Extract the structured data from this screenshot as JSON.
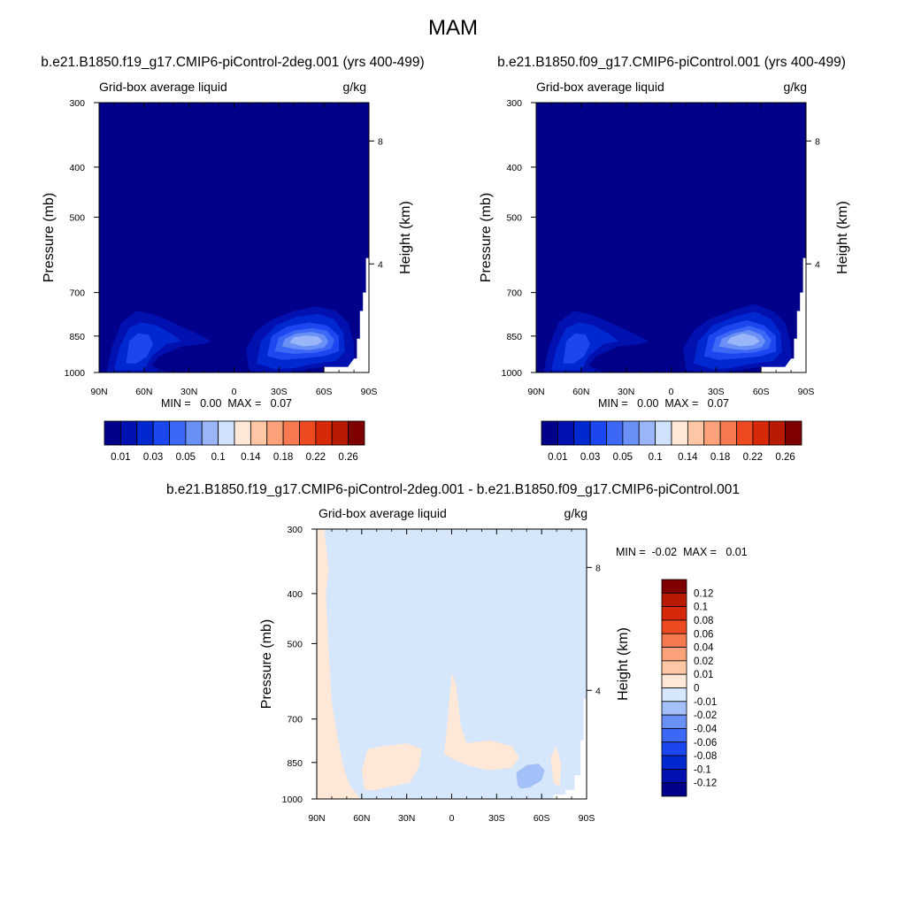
{
  "figure": {
    "title": "MAM"
  },
  "chart_data": [
    {
      "type": "heatmap",
      "title": "b.e21.B1850.f19_g17.CMIP6-piControl-2deg.001 (yrs 400-499)",
      "variable": "Grid-box average liquid",
      "units": "g/kg",
      "ylabel": "Pressure (mb)",
      "ylabel_right": "Height (km)",
      "x_ticks": [
        "90N",
        "60N",
        "30N",
        "0",
        "30S",
        "60S",
        "90S"
      ],
      "y_ticks": [
        "300",
        "400",
        "500",
        "700",
        "850",
        "1000"
      ],
      "y_ticks_right": [
        "8",
        "4"
      ],
      "y_scale": "log",
      "ylim": [
        1000,
        300
      ],
      "stats": "MIN =   0.00  MAX =   0.07",
      "colorbar_levels": [
        0.01,
        0.02,
        0.03,
        0.04,
        0.05,
        0.07,
        0.1,
        0.12,
        0.14,
        0.16,
        0.18,
        0.2,
        0.22,
        0.24,
        0.26
      ],
      "colorbar_labels": [
        "0.01",
        "0.03",
        "0.05",
        "0.1",
        "0.14",
        "0.18",
        "0.22",
        "0.26"
      ],
      "colors": [
        "#00008a",
        "#0011b0",
        "#0028d0",
        "#1c46f0",
        "#3c68f5",
        "#6a8ff5",
        "#9ab6f8",
        "#cfe1fb",
        "#ffe8d8",
        "#fdc7a6",
        "#fba27a",
        "#f57a50",
        "#ee4a22",
        "#d8280a",
        "#b81a04",
        "#7e0000"
      ],
      "contours": [
        {
          "level": "0.01",
          "region": "north-hemisphere low cloud, 60N-15N, 1000-760 mb"
        },
        {
          "level": "0.03",
          "region": "north core near 65N-55N, 900-830 mb"
        },
        {
          "level": "0.01",
          "region": "southern low cloud, 10S-80S, 1000-740 mb"
        },
        {
          "level": "0.05",
          "region": "southern core 25S-65S, 900-790 mb"
        },
        {
          "level": "0.07",
          "region": "peak near 45S-60S, 870-810 mb"
        }
      ]
    },
    {
      "type": "heatmap",
      "title": "b.e21.B1850.f09_g17.CMIP6-piControl.001 (yrs 400-499)",
      "variable": "Grid-box average liquid",
      "units": "g/kg",
      "ylabel": "Pressure (mb)",
      "ylabel_right": "Height (km)",
      "x_ticks": [
        "90N",
        "60N",
        "30N",
        "0",
        "30S",
        "60S",
        "90S"
      ],
      "y_ticks": [
        "300",
        "400",
        "500",
        "700",
        "850",
        "1000"
      ],
      "y_ticks_right": [
        "8",
        "4"
      ],
      "y_scale": "log",
      "ylim": [
        1000,
        300
      ],
      "stats": "MIN =   0.00  MAX =   0.07",
      "colorbar_levels": [
        0.01,
        0.02,
        0.03,
        0.04,
        0.05,
        0.07,
        0.1,
        0.12,
        0.14,
        0.16,
        0.18,
        0.2,
        0.22,
        0.24,
        0.26
      ],
      "colorbar_labels": [
        "0.01",
        "0.03",
        "0.05",
        "0.1",
        "0.14",
        "0.18",
        "0.22",
        "0.26"
      ],
      "colors": [
        "#00008a",
        "#0011b0",
        "#0028d0",
        "#1c46f0",
        "#3c68f5",
        "#6a8ff5",
        "#9ab6f8",
        "#cfe1fb",
        "#ffe8d8",
        "#fdc7a6",
        "#fba27a",
        "#f57a50",
        "#ee4a22",
        "#d8280a",
        "#b81a04",
        "#7e0000"
      ],
      "contours": [
        {
          "level": "0.01",
          "region": "north-hemisphere low cloud, 60N-15N, 1000-750 mb"
        },
        {
          "level": "0.03",
          "region": "north core near 65N-55N, 900-820 mb"
        },
        {
          "level": "0.01",
          "region": "southern low cloud, 10S-80S, 1000-730 mb"
        },
        {
          "level": "0.05",
          "region": "southern core 25S-65S, 900-780 mb"
        },
        {
          "level": "0.07",
          "region": "peak near 40S-60S, 880-800 mb"
        }
      ]
    },
    {
      "type": "heatmap",
      "title": "b.e21.B1850.f19_g17.CMIP6-piControl-2deg.001 - b.e21.B1850.f09_g17.CMIP6-piControl.001",
      "variable": "Grid-box average liquid",
      "units": "g/kg",
      "ylabel": "Pressure (mb)",
      "ylabel_right": "Height (km)",
      "x_ticks": [
        "90N",
        "60N",
        "30N",
        "0",
        "30S",
        "60S",
        "90S"
      ],
      "y_ticks": [
        "300",
        "400",
        "500",
        "700",
        "850",
        "1000"
      ],
      "y_ticks_right": [
        "8",
        "4"
      ],
      "y_scale": "log",
      "ylim": [
        1000,
        300
      ],
      "stats": "MIN =  -0.02  MAX =   0.01",
      "colorbar_levels": [
        -0.12,
        -0.1,
        -0.08,
        -0.06,
        -0.04,
        -0.02,
        -0.01,
        0,
        0.01,
        0.02,
        0.04,
        0.06,
        0.08,
        0.1,
        0.12
      ],
      "colorbar_labels": [
        "-0.12",
        "-0.1",
        "-0.08",
        "-0.06",
        "-0.04",
        "-0.02",
        "-0.01",
        "0",
        "0.01",
        "0.02",
        "0.04",
        "0.06",
        "0.08",
        "0.1",
        "0.12"
      ],
      "colors": [
        "#00008a",
        "#0011b0",
        "#0028d0",
        "#1c46f0",
        "#3c68f5",
        "#6a8ff5",
        "#a4c0f8",
        "#d6e6fb",
        "#ffe8d8",
        "#fdc7a6",
        "#fba27a",
        "#f57a50",
        "#ee4a22",
        "#d8280a",
        "#b81a04",
        "#7e0000"
      ],
      "contours": [
        {
          "level": "0 to 0.01",
          "region": "band along 90N-70N at all levels"
        },
        {
          "level": "0 to 0.01",
          "region": "patch 60N-30N, 790-960 mb"
        },
        {
          "level": "0 to 0.01",
          "region": "patch 0-30S, 540-880 mb"
        },
        {
          "level": "-0.02 to -0.01",
          "region": "patch 45S-65S, 850-950 mb"
        }
      ]
    }
  ]
}
